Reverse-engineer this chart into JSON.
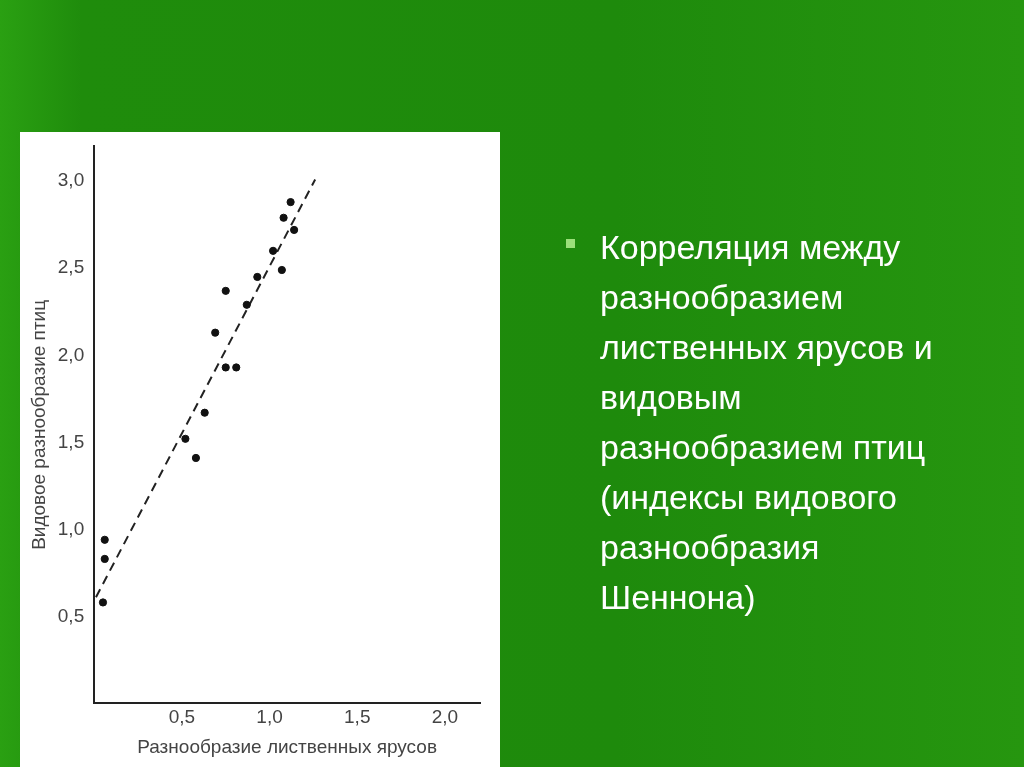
{
  "chart_data": {
    "type": "scatter",
    "xlabel": "Разнообразие лиственных ярусов",
    "ylabel": "Видовое разнообразие птиц",
    "annotations": [
      "Корреляция между разнообразием лиственных ярусов и видовым разнообразием птиц (индексы видового разнообразия Шеннона)"
    ],
    "series": [
      {
        "color": "#111111",
        "marker": "circle",
        "x": [
          1.12,
          1.08,
          1.14,
          1.02,
          1.07,
          0.93,
          0.87,
          0.75,
          0.69,
          0.75,
          0.81,
          0.63,
          0.52,
          0.58,
          0.06,
          0.06,
          0.05
        ],
        "values": [
          2.88,
          2.79,
          2.72,
          2.6,
          2.49,
          2.45,
          2.29,
          2.37,
          2.13,
          1.93,
          1.93,
          1.67,
          1.52,
          1.41,
          0.94,
          0.83,
          0.58
        ]
      },
      {
        "type": "line",
        "color": "#222222",
        "line_style": "dashed",
        "marker": "none",
        "x": [
          0.01,
          1.26
        ],
        "values": [
          0.61,
          3.01
        ]
      }
    ],
    "xlim": [
      0,
      2.2
    ],
    "ylim": [
      0,
      3.2
    ],
    "xticks": [
      {
        "value": 0.5,
        "label": "0,5"
      },
      {
        "value": 1,
        "label": "1,0"
      },
      {
        "value": 1.5,
        "label": "1,5"
      },
      {
        "value": 2,
        "label": "2,0"
      }
    ],
    "yticks": [
      {
        "value": 0.5,
        "label": "0,5"
      },
      {
        "value": 1,
        "label": "1,0"
      },
      {
        "value": 1.5,
        "label": "1,5"
      },
      {
        "value": 2,
        "label": "2,0"
      },
      {
        "value": 2.5,
        "label": "2,5"
      },
      {
        "value": 3,
        "label": "3,0"
      }
    ],
    "grid": false,
    "legend": false
  }
}
